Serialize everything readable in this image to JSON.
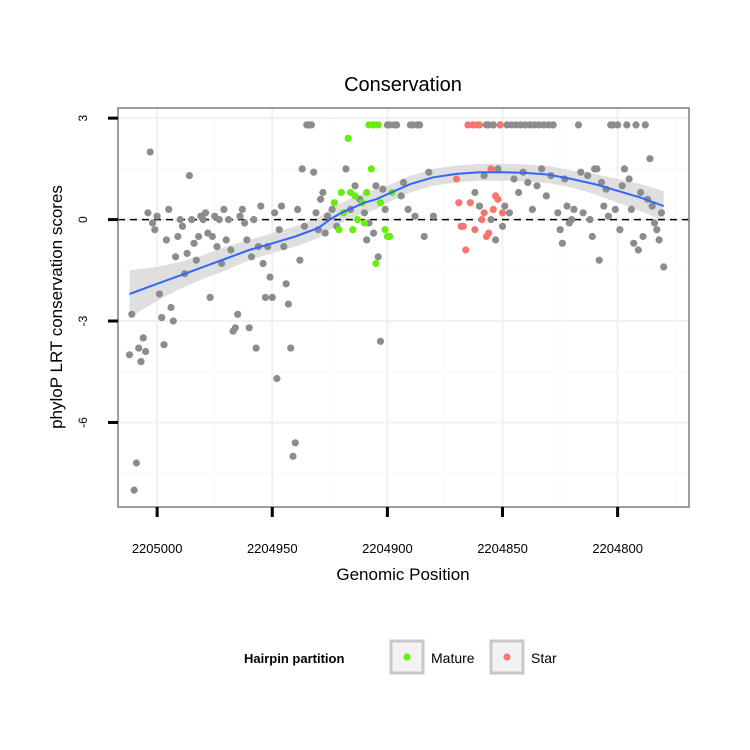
{
  "chart_data": {
    "type": "scatter",
    "title": "Conservation",
    "xlabel": "Genomic Position",
    "ylabel": "phyloP LRT conservation scores",
    "x_reversed": true,
    "xlim": [
      2205017,
      2204769
    ],
    "ylim": [
      -8.5,
      3.3
    ],
    "x_ticks": [
      2205000,
      2204950,
      2204900,
      2204850,
      2204800
    ],
    "x_tick_labels": [
      "2205000",
      "2204950",
      "2204900",
      "2204850",
      "2204800"
    ],
    "y_ticks": [
      3,
      0,
      -3,
      -6
    ],
    "y_tick_labels": [
      "3",
      "0",
      "-3",
      "-6"
    ],
    "reference_line": {
      "y": 0,
      "style": "dashed"
    },
    "legend": {
      "title": "Hairpin partition",
      "position": "bottom",
      "entries": [
        {
          "label": "Mature",
          "color": "#66ee11"
        },
        {
          "label": "Star",
          "color": "#f8766d"
        }
      ]
    },
    "colors": {
      "other": "#8c8c8c",
      "mature": "#66ee11",
      "star": "#f8766d",
      "smooth": "#3366ff",
      "ribbon": "#d9d9d9"
    },
    "series": [
      {
        "name": "Other",
        "color": "#8c8c8c",
        "points": [
          [
            2205012,
            -4.0
          ],
          [
            2205011,
            -2.8
          ],
          [
            2205010,
            -8.0
          ],
          [
            2205009,
            -7.2
          ],
          [
            2205008,
            -3.8
          ],
          [
            2205007,
            -4.2
          ],
          [
            2205006,
            -3.5
          ],
          [
            2205005,
            -3.9
          ],
          [
            2205004,
            0.2
          ],
          [
            2205003,
            2.0
          ],
          [
            2205002,
            -0.1
          ],
          [
            2205001,
            -0.3
          ],
          [
            2205000,
            0.1
          ],
          [
            2204999,
            -2.2
          ],
          [
            2204998,
            -2.9
          ],
          [
            2204997,
            -3.7
          ],
          [
            2204996,
            -0.6
          ],
          [
            2204995,
            0.3
          ],
          [
            2204994,
            -2.6
          ],
          [
            2204993,
            -3.0
          ],
          [
            2204992,
            -1.1
          ],
          [
            2204991,
            -0.5
          ],
          [
            2204990,
            0.0
          ],
          [
            2204989,
            -0.2
          ],
          [
            2204988,
            -1.6
          ],
          [
            2204987,
            -1.0
          ],
          [
            2204986,
            1.3
          ],
          [
            2204985,
            0.0
          ],
          [
            2204984,
            -0.7
          ],
          [
            2204983,
            -1.2
          ],
          [
            2204982,
            -0.5
          ],
          [
            2204981,
            0.1
          ],
          [
            2204980,
            0.0
          ],
          [
            2204979,
            0.2
          ],
          [
            2204978,
            -0.4
          ],
          [
            2204977,
            -2.3
          ],
          [
            2204976,
            -0.5
          ],
          [
            2204975,
            0.1
          ],
          [
            2204974,
            -0.8
          ],
          [
            2204973,
            0.0
          ],
          [
            2204972,
            -1.3
          ],
          [
            2204971,
            0.3
          ],
          [
            2204970,
            -0.6
          ],
          [
            2204969,
            0.0
          ],
          [
            2204968,
            -0.9
          ],
          [
            2204967,
            -3.3
          ],
          [
            2204966,
            -3.2
          ],
          [
            2204965,
            -2.8
          ],
          [
            2204964,
            0.1
          ],
          [
            2204963,
            0.3
          ],
          [
            2204962,
            -0.1
          ],
          [
            2204961,
            -0.6
          ],
          [
            2204960,
            -3.2
          ],
          [
            2204959,
            -1.1
          ],
          [
            2204958,
            0.0
          ],
          [
            2204957,
            -3.8
          ],
          [
            2204956,
            -0.8
          ],
          [
            2204955,
            0.4
          ],
          [
            2204954,
            -1.3
          ],
          [
            2204953,
            -2.3
          ],
          [
            2204952,
            -0.8
          ],
          [
            2204951,
            -1.7
          ],
          [
            2204950,
            -2.3
          ],
          [
            2204949,
            0.2
          ],
          [
            2204948,
            -4.7
          ],
          [
            2204947,
            -0.3
          ],
          [
            2204946,
            0.4
          ],
          [
            2204945,
            -0.8
          ],
          [
            2204944,
            -1.9
          ],
          [
            2204943,
            -2.5
          ],
          [
            2204942,
            -3.8
          ],
          [
            2204941,
            -7.0
          ],
          [
            2204940,
            -6.6
          ],
          [
            2204939,
            0.3
          ],
          [
            2204938,
            -1.2
          ],
          [
            2204937,
            1.5
          ],
          [
            2204936,
            -0.2
          ],
          [
            2204935,
            2.8
          ],
          [
            2204934,
            2.8
          ],
          [
            2204933,
            2.8
          ],
          [
            2204932,
            1.4
          ],
          [
            2204931,
            0.2
          ],
          [
            2204930,
            -0.3
          ],
          [
            2204929,
            0.6
          ],
          [
            2204928,
            0.8
          ],
          [
            2204927,
            -0.4
          ],
          [
            2204926,
            0.1
          ],
          [
            2204924,
            0.3
          ],
          [
            2204922,
            -0.2
          ],
          [
            2204918,
            1.5
          ],
          [
            2204916,
            0.3
          ],
          [
            2204914,
            1.0
          ],
          [
            2204912,
            0.6
          ],
          [
            2204910,
            0.2
          ],
          [
            2204909,
            -0.6
          ],
          [
            2204908,
            -0.1
          ],
          [
            2204906,
            -0.4
          ],
          [
            2204905,
            1.0
          ],
          [
            2204904,
            -1.1
          ],
          [
            2204903,
            -3.6
          ],
          [
            2204902,
            0.9
          ],
          [
            2204901,
            0.3
          ],
          [
            2204900,
            2.8
          ],
          [
            2204899,
            2.8
          ],
          [
            2204897,
            2.8
          ],
          [
            2204896,
            2.8
          ],
          [
            2204894,
            0.7
          ],
          [
            2204893,
            1.1
          ],
          [
            2204891,
            0.3
          ],
          [
            2204890,
            2.8
          ],
          [
            2204889,
            2.8
          ],
          [
            2204888,
            0.1
          ],
          [
            2204887,
            2.8
          ],
          [
            2204886,
            2.8
          ],
          [
            2204884,
            -0.5
          ],
          [
            2204882,
            1.4
          ],
          [
            2204880,
            0.1
          ],
          [
            2204862,
            0.8
          ],
          [
            2204860,
            0.4
          ],
          [
            2204858,
            1.3
          ],
          [
            2204857,
            2.8
          ],
          [
            2204856,
            2.8
          ],
          [
            2204855,
            0.0
          ],
          [
            2204854,
            2.8
          ],
          [
            2204853,
            -0.6
          ],
          [
            2204852,
            1.5
          ],
          [
            2204851,
            2.8
          ],
          [
            2204850,
            -0.2
          ],
          [
            2204849,
            0.4
          ],
          [
            2204848,
            2.8
          ],
          [
            2204847,
            0.2
          ],
          [
            2204846,
            2.8
          ],
          [
            2204845,
            1.2
          ],
          [
            2204844,
            2.8
          ],
          [
            2204843,
            0.8
          ],
          [
            2204842,
            2.8
          ],
          [
            2204841,
            1.4
          ],
          [
            2204840,
            2.8
          ],
          [
            2204839,
            1.1
          ],
          [
            2204838,
            2.8
          ],
          [
            2204837,
            0.3
          ],
          [
            2204836,
            2.8
          ],
          [
            2204835,
            1.0
          ],
          [
            2204834,
            2.8
          ],
          [
            2204833,
            1.5
          ],
          [
            2204832,
            2.8
          ],
          [
            2204831,
            0.7
          ],
          [
            2204830,
            2.8
          ],
          [
            2204829,
            1.3
          ],
          [
            2204828,
            2.8
          ],
          [
            2204826,
            0.2
          ],
          [
            2204825,
            -0.3
          ],
          [
            2204824,
            -0.7
          ],
          [
            2204823,
            1.2
          ],
          [
            2204822,
            0.4
          ],
          [
            2204821,
            -0.1
          ],
          [
            2204820,
            0.0
          ],
          [
            2204819,
            0.3
          ],
          [
            2204817,
            2.8
          ],
          [
            2204816,
            1.4
          ],
          [
            2204815,
            0.2
          ],
          [
            2204813,
            1.3
          ],
          [
            2204812,
            0.0
          ],
          [
            2204811,
            -0.5
          ],
          [
            2204810,
            1.5
          ],
          [
            2204809,
            1.5
          ],
          [
            2204808,
            -1.2
          ],
          [
            2204807,
            1.1
          ],
          [
            2204806,
            0.4
          ],
          [
            2204805,
            0.9
          ],
          [
            2204804,
            0.1
          ],
          [
            2204803,
            2.8
          ],
          [
            2204802,
            2.8
          ],
          [
            2204801,
            0.3
          ],
          [
            2204800,
            2.8
          ],
          [
            2204799,
            -0.3
          ],
          [
            2204798,
            1.0
          ],
          [
            2204797,
            1.5
          ],
          [
            2204796,
            2.8
          ],
          [
            2204795,
            1.2
          ],
          [
            2204794,
            0.3
          ],
          [
            2204793,
            -0.7
          ],
          [
            2204792,
            2.8
          ],
          [
            2204791,
            -0.9
          ],
          [
            2204790,
            0.8
          ],
          [
            2204789,
            -0.5
          ],
          [
            2204788,
            2.8
          ],
          [
            2204787,
            0.6
          ],
          [
            2204786,
            1.8
          ],
          [
            2204785,
            0.4
          ],
          [
            2204784,
            -0.1
          ],
          [
            2204783,
            -0.3
          ],
          [
            2204782,
            -0.6
          ],
          [
            2204781,
            0.2
          ],
          [
            2204780,
            -1.4
          ]
        ]
      },
      {
        "name": "Mature",
        "color": "#66ee11",
        "points": [
          [
            2204923,
            0.5
          ],
          [
            2204921,
            -0.3
          ],
          [
            2204920,
            0.8
          ],
          [
            2204919,
            0.2
          ],
          [
            2204917,
            2.4
          ],
          [
            2204916,
            0.8
          ],
          [
            2204915,
            -0.3
          ],
          [
            2204914,
            0.7
          ],
          [
            2204913,
            0.0
          ],
          [
            2204911,
            0.5
          ],
          [
            2204910,
            -0.1
          ],
          [
            2204909,
            0.8
          ],
          [
            2204908,
            2.8
          ],
          [
            2204907,
            1.5
          ],
          [
            2204906,
            2.8
          ],
          [
            2204905,
            -1.3
          ],
          [
            2204904,
            2.8
          ],
          [
            2204903,
            0.5
          ],
          [
            2204901,
            -0.3
          ],
          [
            2204900,
            -0.5
          ],
          [
            2204899,
            -0.5
          ],
          [
            2204898,
            0.8
          ]
        ]
      },
      {
        "name": "Star",
        "color": "#f8766d",
        "points": [
          [
            2204870,
            1.2
          ],
          [
            2204869,
            0.5
          ],
          [
            2204868,
            -0.2
          ],
          [
            2204867,
            -0.2
          ],
          [
            2204866,
            -0.9
          ],
          [
            2204865,
            2.8
          ],
          [
            2204864,
            0.5
          ],
          [
            2204863,
            2.8
          ],
          [
            2204862,
            -0.3
          ],
          [
            2204861,
            2.8
          ],
          [
            2204860,
            2.8
          ],
          [
            2204859,
            0.0
          ],
          [
            2204858,
            0.2
          ],
          [
            2204857,
            -0.5
          ],
          [
            2204856,
            -0.4
          ],
          [
            2204855,
            1.5
          ],
          [
            2204854,
            0.3
          ],
          [
            2204853,
            0.7
          ],
          [
            2204852,
            0.6
          ],
          [
            2204851,
            2.8
          ],
          [
            2204850,
            0.2
          ]
        ]
      },
      {
        "name": "Smooth fit",
        "color": "#3366ff",
        "type": "line",
        "points": [
          [
            2205012,
            -2.2
          ],
          [
            2205000,
            -1.9
          ],
          [
            2204990,
            -1.65
          ],
          [
            2204980,
            -1.4
          ],
          [
            2204970,
            -1.15
          ],
          [
            2204960,
            -0.9
          ],
          [
            2204950,
            -0.7
          ],
          [
            2204940,
            -0.5
          ],
          [
            2204930,
            -0.25
          ],
          [
            2204925,
            0.0
          ],
          [
            2204920,
            0.2
          ],
          [
            2204915,
            0.35
          ],
          [
            2204910,
            0.5
          ],
          [
            2204905,
            0.6
          ],
          [
            2204900,
            0.75
          ],
          [
            2204890,
            1.05
          ],
          [
            2204880,
            1.25
          ],
          [
            2204870,
            1.35
          ],
          [
            2204860,
            1.4
          ],
          [
            2204850,
            1.4
          ],
          [
            2204840,
            1.38
          ],
          [
            2204830,
            1.33
          ],
          [
            2204820,
            1.2
          ],
          [
            2204810,
            1.05
          ],
          [
            2204800,
            0.85
          ],
          [
            2204790,
            0.65
          ],
          [
            2204780,
            0.4
          ]
        ]
      }
    ],
    "confidence_band": {
      "halfwidth": [
        0.7,
        0.5,
        0.4,
        0.35,
        0.35,
        0.3,
        0.3,
        0.3,
        0.3,
        0.3,
        0.3,
        0.3,
        0.3,
        0.3,
        0.25,
        0.25,
        0.25,
        0.25,
        0.25,
        0.25,
        0.25,
        0.25,
        0.25,
        0.3,
        0.35,
        0.4,
        0.45
      ]
    }
  }
}
